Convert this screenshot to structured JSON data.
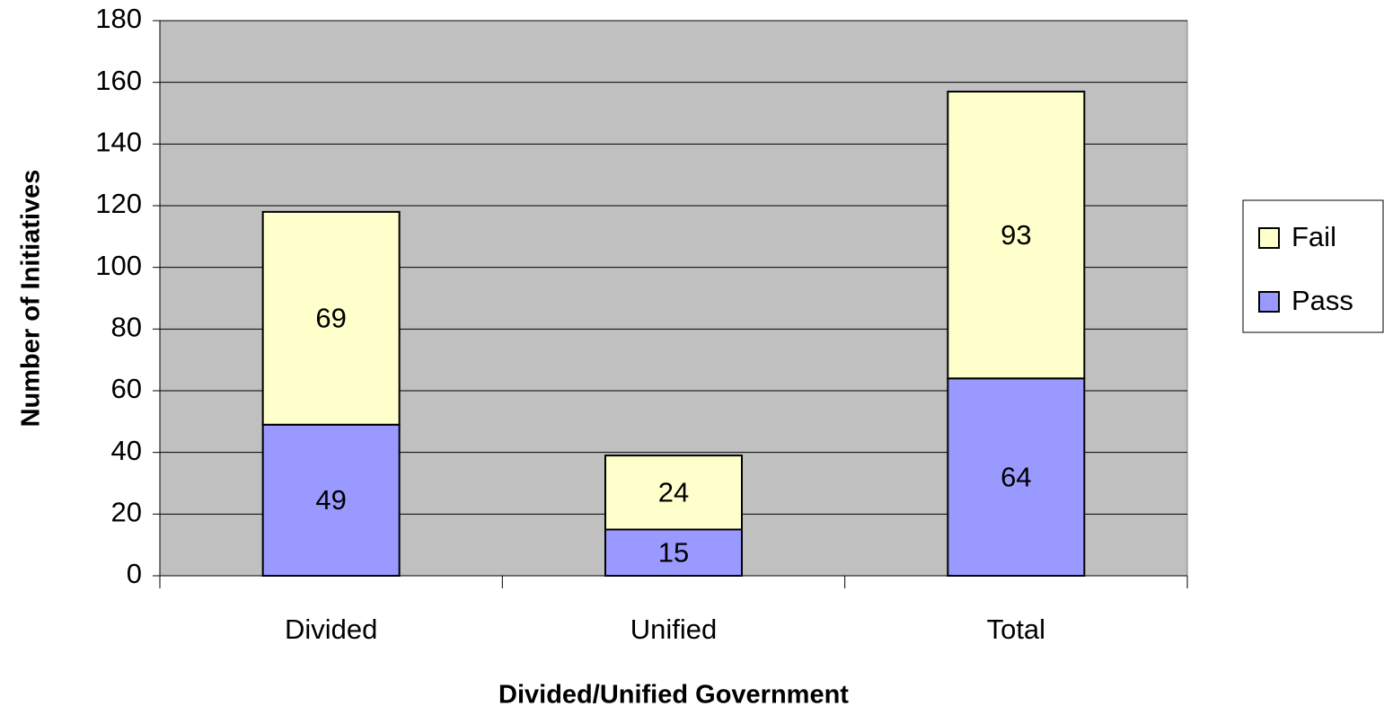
{
  "chart_data": {
    "type": "stacked_bar",
    "categories": [
      "Divided",
      "Unified",
      "Total"
    ],
    "series": [
      {
        "name": "Pass",
        "color": "#9999ff",
        "values": [
          49,
          15,
          64
        ]
      },
      {
        "name": "Fail",
        "color": "#ffffcc",
        "values": [
          69,
          24,
          93
        ]
      }
    ],
    "x_label": "Divided/Unified Government",
    "y_label": "Number of Initiatives",
    "ylim": [
      0,
      180
    ],
    "yticks": [
      0,
      20,
      40,
      60,
      80,
      100,
      120,
      140,
      160,
      180
    ],
    "grid": true,
    "legend": "right"
  }
}
